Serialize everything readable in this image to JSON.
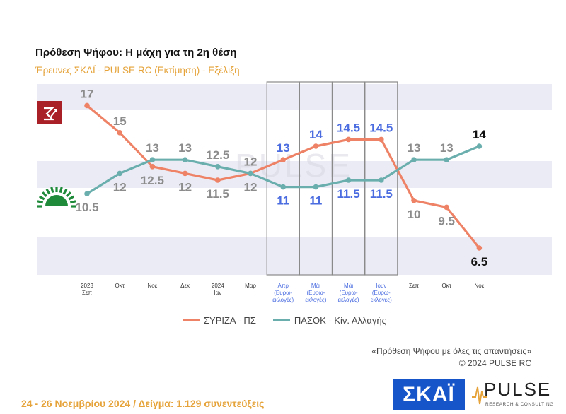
{
  "header": {
    "title": "Πρόθεση Ψήφου: Η μάχη για τη 2η θέση",
    "subtitle": "Έρευνες ΣΚΑΪ - PULSE RC   (Εκτίμηση) - Εξέλιξη"
  },
  "chart_data": {
    "type": "line",
    "categories": [
      "2023 Σεπ",
      "Οκτ",
      "Νοε",
      "Δεκ",
      "2024 Ιαν",
      "Μαρ",
      "Απρ (Ευρω-εκλογές)",
      "Μάι (Ευρω-εκλογές)",
      "Μάι (Ευρω-εκλογές)",
      "Ιουν (Ευρω-εκλογές)",
      "Σεπ",
      "Οκτ",
      "Νοε"
    ],
    "x_tick_lines": [
      [
        "2023",
        "Σεπ"
      ],
      [
        "Οκτ"
      ],
      [
        "Νοε"
      ],
      [
        "Δεκ"
      ],
      [
        "2024",
        "Ιαν"
      ],
      [
        "Μαρ"
      ],
      [
        "Απρ",
        "(Ευρω-",
        "εκλογές)"
      ],
      [
        "Μάι",
        "(Ευρω-",
        "εκλογές)"
      ],
      [
        "Μάι",
        "(Ευρω-",
        "εκλογές)"
      ],
      [
        "Ιουν",
        "(Ευρω-",
        "εκλογές)"
      ],
      [
        "Σεπ"
      ],
      [
        "Οκτ"
      ],
      [
        "Νοε"
      ]
    ],
    "series": [
      {
        "name": "ΣΥΡΙΖΑ - ΠΣ",
        "color": "#EE8266",
        "values": [
          17,
          15,
          12.5,
          12,
          11.5,
          12,
          13,
          14,
          14.5,
          14.5,
          10,
          9.5,
          6.5
        ],
        "labels": [
          "17",
          "15",
          "12.5",
          "12",
          "11.5",
          "12",
          "13",
          "14",
          "14.5",
          "14.5",
          "10",
          "9.5",
          "6.5"
        ]
      },
      {
        "name": "ΠΑΣΟΚ - Κίν. Αλλαγής",
        "color": "#6AAFAE",
        "values": [
          10.5,
          12,
          13,
          13,
          12.5,
          12,
          11,
          11,
          11.5,
          11.5,
          13,
          13,
          14
        ],
        "labels": [
          "10.5",
          "12",
          "13",
          "13",
          "12.5",
          "12",
          "11",
          "11",
          "11.5",
          "11.5",
          "13",
          "13",
          "14"
        ]
      }
    ],
    "election_period_indices": [
      6,
      7,
      8,
      9
    ],
    "label_color": "#8C8C8C",
    "election_label_color": "#4A6CE0",
    "final_label_color": "#111111",
    "watermark": "PULSE",
    "ylim": [
      5,
      19
    ],
    "grid": "horizontal bands",
    "legend": "bottom-center"
  },
  "legend": {
    "syriza": "ΣΥΡΙΖΑ - ΠΣ",
    "pasok": "ΠΑΣΟΚ - Κίν. Αλλαγής"
  },
  "note": {
    "line1": "«Πρόθεση Ψήφου με όλες τις απαντήσεις»",
    "line2": "©  2024  PULSE RC"
  },
  "footer": {
    "text": "24 - 26 Νοεμβρίου 2024  /  Δείγμα:  1.129 συνεντεύξεις"
  },
  "logos": {
    "skai": "ΣΚΑΪ",
    "pulse": "PULSE",
    "pulse_sub": "RESEARCH & CONSULTING"
  },
  "colors": {
    "band": "#EBEBF5",
    "syriza": "#EE8266",
    "pasok": "#6AAFAE",
    "subtitle": "#E5A33A",
    "skai_blue": "#1554C9"
  }
}
